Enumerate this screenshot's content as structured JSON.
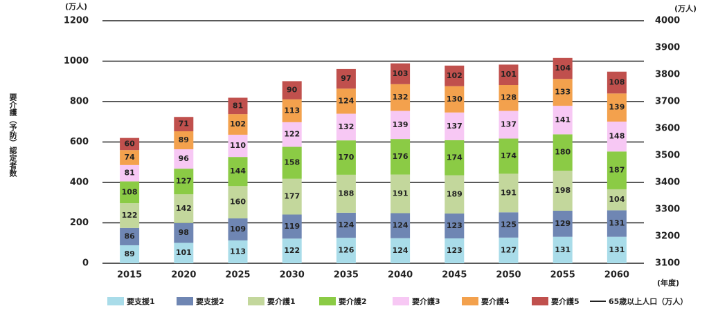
{
  "chart_data": {
    "type": "bar",
    "stacked": true,
    "y_unit_label": "(万人)",
    "y2_unit_label": "(万人)",
    "x_unit_label": "(年度)",
    "y_label": "要介護（予防）認定者数",
    "categories": [
      "2015",
      "2020",
      "2025",
      "2030",
      "2035",
      "2040",
      "2045",
      "2050",
      "2055",
      "2060"
    ],
    "series": [
      {
        "name": "要支援1",
        "color": "#a9dce9",
        "values": [
          89,
          101,
          113,
          122,
          126,
          124,
          123,
          127,
          131,
          131
        ]
      },
      {
        "name": "要支援2",
        "color": "#6f86b3",
        "values": [
          86,
          98,
          109,
          119,
          124,
          124,
          123,
          125,
          129,
          131
        ]
      },
      {
        "name": "要介護1",
        "color": "#c3d79c",
        "values": [
          122,
          142,
          160,
          177,
          188,
          191,
          189,
          191,
          198,
          104
        ]
      },
      {
        "name": "要介護2",
        "color": "#8bcb45",
        "values": [
          108,
          127,
          144,
          158,
          170,
          176,
          174,
          174,
          180,
          187
        ]
      },
      {
        "name": "要介護3",
        "color": "#f7c8f4",
        "values": [
          81,
          96,
          110,
          122,
          132,
          139,
          137,
          137,
          141,
          148
        ]
      },
      {
        "name": "要介護4",
        "color": "#f3a14d",
        "values": [
          74,
          89,
          102,
          113,
          124,
          132,
          130,
          128,
          133,
          139
        ]
      },
      {
        "name": "要介護5",
        "color": "#c0504d",
        "values": [
          60,
          71,
          81,
          90,
          97,
          103,
          102,
          101,
          104,
          108
        ]
      }
    ],
    "line_legend_label": "65歳以上人口（万人）",
    "ylim": [
      0,
      1200
    ],
    "yticks": [
      0,
      200,
      400,
      600,
      800,
      1000,
      1200
    ],
    "y2lim": [
      3100,
      4000
    ],
    "y2ticks": [
      3100,
      3200,
      3300,
      3400,
      3500,
      3600,
      3700,
      3800,
      3900,
      4000
    ],
    "grid": true
  }
}
